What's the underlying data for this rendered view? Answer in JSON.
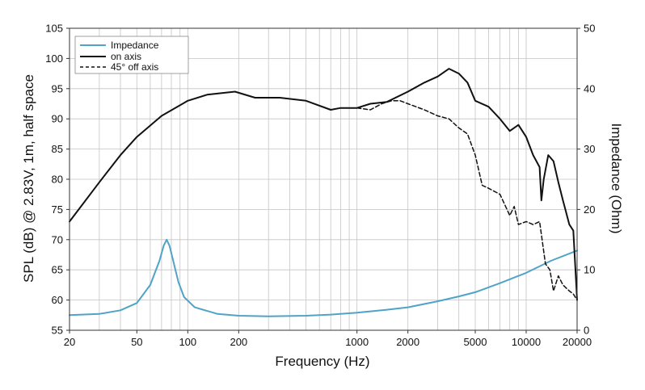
{
  "chart_data": {
    "type": "line",
    "title": "",
    "xlabel": "Frequency (Hz)",
    "ylabel_left": "SPL (dB) @ 2.83V, 1m, half space",
    "ylabel_right": "Impedance (Ohm)",
    "x_scale": "log",
    "xlim": [
      20,
      20000
    ],
    "ylim_left": [
      55,
      105
    ],
    "ylim_right": [
      0,
      50
    ],
    "x_ticks": [
      20,
      50,
      100,
      200,
      1000,
      2000,
      5000,
      10000,
      20000
    ],
    "x_tick_labels": [
      "20",
      "50",
      "100",
      "200",
      "1000",
      "2000",
      "5000",
      "10000",
      "20000"
    ],
    "y_ticks_left": [
      55,
      60,
      65,
      70,
      75,
      80,
      85,
      90,
      95,
      100,
      105
    ],
    "y_ticks_right": [
      0,
      10,
      20,
      30,
      40,
      50
    ],
    "grid": true,
    "legend_position": "top-left",
    "series": [
      {
        "name": "Impedance",
        "axis": "right",
        "color": "#4fa3c7",
        "dash": "solid",
        "points": [
          [
            20,
            2.5
          ],
          [
            30,
            2.7
          ],
          [
            40,
            3.3
          ],
          [
            50,
            4.5
          ],
          [
            60,
            7.5
          ],
          [
            68,
            11.5
          ],
          [
            72,
            14
          ],
          [
            75,
            15
          ],
          [
            78,
            14
          ],
          [
            82,
            11.5
          ],
          [
            88,
            8
          ],
          [
            95,
            5.5
          ],
          [
            110,
            3.8
          ],
          [
            150,
            2.7
          ],
          [
            200,
            2.4
          ],
          [
            300,
            2.3
          ],
          [
            500,
            2.4
          ],
          [
            700,
            2.6
          ],
          [
            1000,
            2.9
          ],
          [
            1500,
            3.4
          ],
          [
            2000,
            3.8
          ],
          [
            3000,
            4.8
          ],
          [
            4000,
            5.6
          ],
          [
            5000,
            6.3
          ],
          [
            7000,
            7.8
          ],
          [
            10000,
            9.5
          ],
          [
            14000,
            11.5
          ],
          [
            20000,
            13.2
          ]
        ]
      },
      {
        "name": "on axis",
        "axis": "left",
        "color": "#111111",
        "dash": "solid",
        "points": [
          [
            20,
            73
          ],
          [
            30,
            79.5
          ],
          [
            40,
            84
          ],
          [
            50,
            87
          ],
          [
            70,
            90.5
          ],
          [
            100,
            93
          ],
          [
            130,
            94
          ],
          [
            190,
            94.5
          ],
          [
            250,
            93.5
          ],
          [
            350,
            93.5
          ],
          [
            500,
            93
          ],
          [
            700,
            91.5
          ],
          [
            800,
            91.8
          ],
          [
            1000,
            91.8
          ],
          [
            1200,
            92.5
          ],
          [
            1500,
            92.8
          ],
          [
            2000,
            94.5
          ],
          [
            2500,
            96
          ],
          [
            3000,
            97
          ],
          [
            3500,
            98.3
          ],
          [
            4000,
            97.5
          ],
          [
            4500,
            96
          ],
          [
            5000,
            93
          ],
          [
            6000,
            92
          ],
          [
            7000,
            90
          ],
          [
            8000,
            88
          ],
          [
            9000,
            89
          ],
          [
            10000,
            87
          ],
          [
            11000,
            84
          ],
          [
            12000,
            82
          ],
          [
            12300,
            76.5
          ],
          [
            12700,
            80
          ],
          [
            13500,
            84
          ],
          [
            14500,
            83
          ],
          [
            15500,
            79.5
          ],
          [
            16500,
            76.5
          ],
          [
            18000,
            72.5
          ],
          [
            19000,
            71.5
          ],
          [
            20000,
            60
          ]
        ]
      },
      {
        "name": "45° off axis",
        "axis": "left",
        "color": "#111111",
        "dash": "dashed",
        "points": [
          [
            1000,
            91.8
          ],
          [
            1200,
            91.5
          ],
          [
            1400,
            92.5
          ],
          [
            1600,
            93
          ],
          [
            1800,
            93
          ],
          [
            2000,
            92.5
          ],
          [
            2500,
            91.5
          ],
          [
            3000,
            90.5
          ],
          [
            3500,
            90
          ],
          [
            4000,
            88.5
          ],
          [
            4500,
            87.5
          ],
          [
            5000,
            84
          ],
          [
            5500,
            79
          ],
          [
            6000,
            78.5
          ],
          [
            7000,
            77.5
          ],
          [
            8000,
            74
          ],
          [
            8500,
            75.5
          ],
          [
            9000,
            72.5
          ],
          [
            10000,
            73
          ],
          [
            11000,
            72.5
          ],
          [
            12000,
            73
          ],
          [
            13000,
            66
          ],
          [
            13800,
            65
          ],
          [
            14500,
            61.5
          ],
          [
            15500,
            64
          ],
          [
            16500,
            62.5
          ],
          [
            18000,
            61.5
          ],
          [
            19000,
            61
          ],
          [
            20000,
            60
          ]
        ]
      }
    ]
  }
}
